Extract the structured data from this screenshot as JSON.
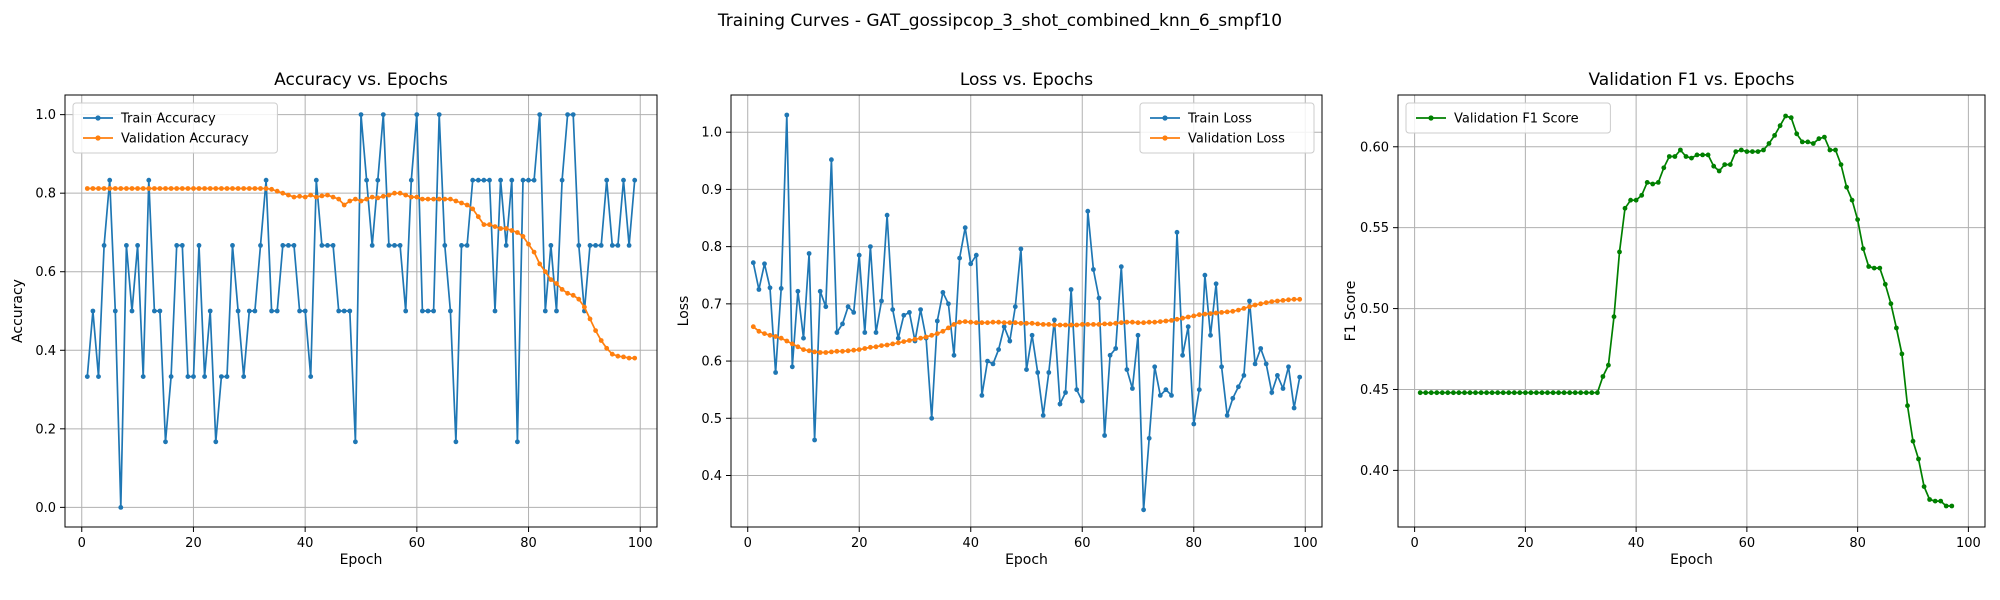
{
  "figure": {
    "suptitle": "Training Curves - GAT_gossipcop_3_shot_combined_knn_6_smpf10"
  },
  "colors": {
    "train": "#1f77b4",
    "validation": "#ff7f0e",
    "f1": "#008000"
  },
  "chart_data": [
    {
      "type": "line",
      "title": "Accuracy vs. Epochs",
      "xlabel": "Epoch",
      "ylabel": "Accuracy",
      "xlim": [
        -3,
        103
      ],
      "ylim": [
        -0.05,
        1.05
      ],
      "xticks": [
        0,
        20,
        40,
        60,
        80,
        100
      ],
      "yticks": [
        0.0,
        0.2,
        0.4,
        0.6,
        0.8,
        1.0
      ],
      "ytick_labels": [
        "0.0",
        "0.2",
        "0.4",
        "0.6",
        "0.8",
        "1.0"
      ],
      "legend": "upper-left",
      "grid": true,
      "x_start": 1,
      "series": [
        {
          "name": "Train Accuracy",
          "color_key": "train",
          "values": [
            0.333,
            0.5,
            0.333,
            0.667,
            0.833,
            0.5,
            0.0,
            0.667,
            0.5,
            0.667,
            0.333,
            0.833,
            0.5,
            0.5,
            0.167,
            0.333,
            0.667,
            0.667,
            0.333,
            0.333,
            0.667,
            0.333,
            0.5,
            0.167,
            0.333,
            0.333,
            0.667,
            0.5,
            0.333,
            0.5,
            0.5,
            0.667,
            0.833,
            0.5,
            0.5,
            0.667,
            0.667,
            0.667,
            0.5,
            0.5,
            0.333,
            0.833,
            0.667,
            0.667,
            0.667,
            0.5,
            0.5,
            0.5,
            0.167,
            1.0,
            0.833,
            0.667,
            0.833,
            1.0,
            0.667,
            0.667,
            0.667,
            0.5,
            0.833,
            1.0,
            0.5,
            0.5,
            0.5,
            1.0,
            0.667,
            0.5,
            0.167,
            0.667,
            0.667,
            0.833,
            0.833,
            0.833,
            0.833,
            0.5,
            0.833,
            0.667,
            0.833,
            0.167,
            0.833,
            0.833,
            0.833,
            1.0,
            0.5,
            0.667,
            0.5,
            0.833,
            1.0,
            1.0,
            0.667,
            0.5,
            0.667,
            0.667,
            0.667,
            0.833,
            0.667,
            0.667,
            0.833,
            0.667,
            0.833
          ]
        },
        {
          "name": "Validation Accuracy",
          "color_key": "validation",
          "values": [
            0.812,
            0.812,
            0.812,
            0.812,
            0.812,
            0.812,
            0.812,
            0.812,
            0.812,
            0.812,
            0.812,
            0.812,
            0.812,
            0.812,
            0.812,
            0.812,
            0.812,
            0.812,
            0.812,
            0.812,
            0.812,
            0.812,
            0.812,
            0.812,
            0.812,
            0.812,
            0.812,
            0.812,
            0.812,
            0.812,
            0.812,
            0.812,
            0.812,
            0.81,
            0.805,
            0.8,
            0.795,
            0.79,
            0.792,
            0.79,
            0.795,
            0.79,
            0.793,
            0.795,
            0.79,
            0.785,
            0.77,
            0.78,
            0.785,
            0.78,
            0.785,
            0.79,
            0.788,
            0.792,
            0.795,
            0.8,
            0.8,
            0.795,
            0.79,
            0.79,
            0.785,
            0.785,
            0.785,
            0.785,
            0.785,
            0.785,
            0.78,
            0.775,
            0.77,
            0.76,
            0.74,
            0.72,
            0.72,
            0.715,
            0.71,
            0.71,
            0.705,
            0.7,
            0.69,
            0.67,
            0.65,
            0.62,
            0.6,
            0.58,
            0.57,
            0.555,
            0.545,
            0.54,
            0.53,
            0.51,
            0.48,
            0.45,
            0.425,
            0.405,
            0.39,
            0.385,
            0.383,
            0.38,
            0.38
          ]
        }
      ]
    },
    {
      "type": "line",
      "title": "Loss vs. Epochs",
      "xlabel": "Epoch",
      "ylabel": "Loss",
      "xlim": [
        -3,
        103
      ],
      "ylim": [
        0.31,
        1.065
      ],
      "xticks": [
        0,
        20,
        40,
        60,
        80,
        100
      ],
      "yticks": [
        0.4,
        0.5,
        0.6,
        0.7,
        0.8,
        0.9,
        1.0
      ],
      "ytick_labels": [
        "0.4",
        "0.5",
        "0.6",
        "0.7",
        "0.8",
        "0.9",
        "1.0"
      ],
      "legend": "upper-right",
      "grid": true,
      "x_start": 1,
      "series": [
        {
          "name": "Train Loss",
          "color_key": "train",
          "values": [
            0.772,
            0.725,
            0.77,
            0.728,
            0.58,
            0.727,
            1.03,
            0.59,
            0.722,
            0.64,
            0.788,
            0.462,
            0.722,
            0.695,
            0.952,
            0.65,
            0.665,
            0.695,
            0.685,
            0.785,
            0.65,
            0.8,
            0.65,
            0.705,
            0.855,
            0.69,
            0.64,
            0.68,
            0.685,
            0.635,
            0.69,
            0.64,
            0.5,
            0.67,
            0.72,
            0.7,
            0.61,
            0.78,
            0.833,
            0.77,
            0.785,
            0.54,
            0.6,
            0.595,
            0.62,
            0.66,
            0.635,
            0.695,
            0.796,
            0.585,
            0.645,
            0.58,
            0.505,
            0.58,
            0.672,
            0.525,
            0.545,
            0.725,
            0.55,
            0.53,
            0.862,
            0.76,
            0.71,
            0.47,
            0.61,
            0.622,
            0.765,
            0.585,
            0.552,
            0.645,
            0.34,
            0.465,
            0.59,
            0.54,
            0.55,
            0.54,
            0.825,
            0.61,
            0.66,
            0.49,
            0.55,
            0.75,
            0.645,
            0.735,
            0.59,
            0.505,
            0.535,
            0.555,
            0.575,
            0.705,
            0.595,
            0.622,
            0.595,
            0.545,
            0.575,
            0.552,
            0.59,
            0.518,
            0.572
          ]
        },
        {
          "name": "Validation Loss",
          "color_key": "validation",
          "values": [
            0.66,
            0.652,
            0.648,
            0.645,
            0.643,
            0.64,
            0.635,
            0.63,
            0.625,
            0.62,
            0.618,
            0.616,
            0.615,
            0.615,
            0.616,
            0.617,
            0.617,
            0.618,
            0.619,
            0.62,
            0.622,
            0.624,
            0.625,
            0.627,
            0.628,
            0.63,
            0.632,
            0.634,
            0.636,
            0.638,
            0.64,
            0.642,
            0.645,
            0.648,
            0.652,
            0.658,
            0.664,
            0.668,
            0.669,
            0.668,
            0.667,
            0.667,
            0.667,
            0.668,
            0.668,
            0.667,
            0.667,
            0.667,
            0.666,
            0.666,
            0.666,
            0.665,
            0.664,
            0.664,
            0.663,
            0.663,
            0.663,
            0.663,
            0.663,
            0.664,
            0.664,
            0.664,
            0.664,
            0.665,
            0.665,
            0.666,
            0.667,
            0.668,
            0.668,
            0.667,
            0.667,
            0.668,
            0.668,
            0.669,
            0.67,
            0.671,
            0.673,
            0.675,
            0.677,
            0.679,
            0.681,
            0.682,
            0.683,
            0.684,
            0.685,
            0.686,
            0.687,
            0.689,
            0.692,
            0.695,
            0.698,
            0.7,
            0.702,
            0.704,
            0.705,
            0.706,
            0.707,
            0.708,
            0.708
          ]
        }
      ]
    },
    {
      "type": "line",
      "title": "Validation F1 vs. Epochs",
      "xlabel": "Epoch",
      "ylabel": "F1 Score",
      "xlim": [
        -3,
        103
      ],
      "ylim": [
        0.365,
        0.632
      ],
      "xticks": [
        0,
        20,
        40,
        60,
        80,
        100
      ],
      "yticks": [
        0.4,
        0.45,
        0.5,
        0.55,
        0.6
      ],
      "ytick_labels": [
        "0.40",
        "0.45",
        "0.50",
        "0.55",
        "0.60"
      ],
      "legend": "upper-left",
      "grid": true,
      "x_start": 1,
      "series": [
        {
          "name": "Validation F1 Score",
          "color_key": "f1",
          "values": [
            0.448,
            0.448,
            0.448,
            0.448,
            0.448,
            0.448,
            0.448,
            0.448,
            0.448,
            0.448,
            0.448,
            0.448,
            0.448,
            0.448,
            0.448,
            0.448,
            0.448,
            0.448,
            0.448,
            0.448,
            0.448,
            0.448,
            0.448,
            0.448,
            0.448,
            0.448,
            0.448,
            0.448,
            0.448,
            0.448,
            0.448,
            0.448,
            0.448,
            0.458,
            0.465,
            0.495,
            0.535,
            0.562,
            0.567,
            0.567,
            0.57,
            0.578,
            0.577,
            0.578,
            0.587,
            0.594,
            0.594,
            0.598,
            0.594,
            0.593,
            0.595,
            0.595,
            0.595,
            0.588,
            0.585,
            0.589,
            0.589,
            0.597,
            0.598,
            0.597,
            0.597,
            0.597,
            0.598,
            0.602,
            0.607,
            0.613,
            0.619,
            0.618,
            0.608,
            0.603,
            0.603,
            0.602,
            0.605,
            0.606,
            0.598,
            0.598,
            0.589,
            0.575,
            0.567,
            0.555,
            0.537,
            0.526,
            0.525,
            0.525,
            0.515,
            0.503,
            0.488,
            0.472,
            0.44,
            0.418,
            0.407,
            0.39,
            0.382,
            0.381,
            0.381,
            0.378,
            0.378
          ]
        }
      ]
    }
  ]
}
